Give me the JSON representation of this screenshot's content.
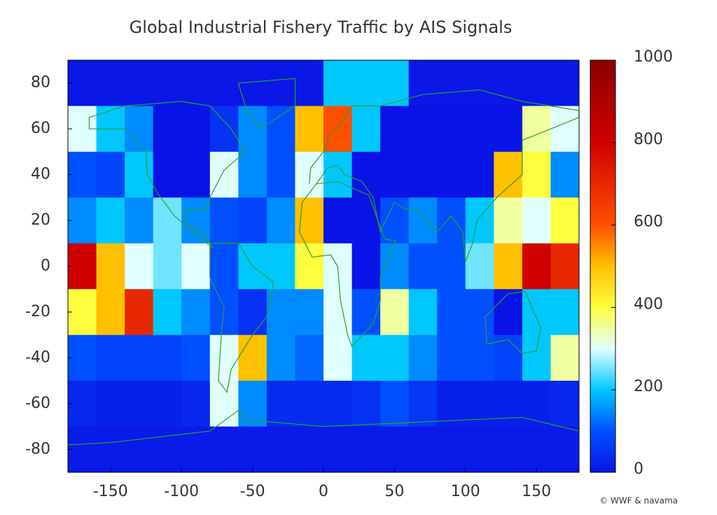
{
  "chart_data": {
    "type": "heatmap",
    "title": "Global Industrial Fishery Traffic by AIS Signals",
    "credit": "© WWF & navama",
    "x": [
      -170,
      -150,
      -130,
      -110,
      -90,
      -70,
      -50,
      -30,
      -10,
      10,
      30,
      50,
      70,
      90,
      110,
      130,
      150,
      170
    ],
    "y": [
      80,
      60,
      40,
      20,
      0,
      -20,
      -40,
      -60,
      -80
    ],
    "values": [
      [
        5,
        5,
        5,
        5,
        5,
        5,
        5,
        5,
        5,
        200,
        200,
        200,
        5,
        5,
        5,
        5,
        5,
        5
      ],
      [
        300,
        200,
        150,
        0,
        0,
        50,
        150,
        100,
        500,
        600,
        200,
        0,
        0,
        0,
        0,
        0,
        350,
        300
      ],
      [
        100,
        80,
        200,
        0,
        0,
        300,
        150,
        100,
        300,
        200,
        0,
        0,
        0,
        0,
        0,
        500,
        400,
        150
      ],
      [
        150,
        200,
        150,
        250,
        150,
        100,
        80,
        150,
        500,
        0,
        0,
        100,
        150,
        100,
        200,
        350,
        300,
        400
      ],
      [
        800,
        500,
        300,
        250,
        300,
        100,
        200,
        200,
        400,
        300,
        0,
        150,
        100,
        100,
        250,
        500,
        800,
        700
      ],
      [
        400,
        500,
        700,
        200,
        150,
        100,
        50,
        150,
        150,
        300,
        100,
        350,
        200,
        100,
        100,
        0,
        200,
        200
      ],
      [
        100,
        80,
        80,
        80,
        100,
        300,
        500,
        150,
        120,
        300,
        200,
        200,
        150,
        100,
        100,
        80,
        200,
        350
      ],
      [
        30,
        20,
        20,
        20,
        30,
        300,
        150,
        40,
        40,
        40,
        50,
        100,
        60,
        20,
        20,
        20,
        20,
        30
      ],
      [
        10,
        10,
        10,
        10,
        10,
        10,
        10,
        10,
        10,
        10,
        10,
        10,
        10,
        10,
        10,
        10,
        10,
        10
      ]
    ],
    "cell_size": 20,
    "xlim": [
      -180,
      180
    ],
    "ylim": [
      -90,
      90
    ],
    "xticks": [
      -150,
      -100,
      -50,
      0,
      50,
      100,
      150
    ],
    "yticks": [
      -80,
      -60,
      -40,
      -20,
      0,
      20,
      40,
      60,
      80
    ],
    "zlim": [
      0,
      1000
    ],
    "zticks": [
      0,
      200,
      400,
      600,
      800,
      1000
    ],
    "colorscale": [
      [
        0,
        "#0a14e6"
      ],
      [
        100,
        "#0050ff"
      ],
      [
        200,
        "#00c8ff"
      ],
      [
        300,
        "#e0ffff"
      ],
      [
        400,
        "#ffff40"
      ],
      [
        500,
        "#ffc000"
      ],
      [
        600,
        "#ff5000"
      ],
      [
        800,
        "#d00000"
      ],
      [
        1000,
        "#8b0000"
      ]
    ],
    "coastline_color": "#2ca02c"
  }
}
